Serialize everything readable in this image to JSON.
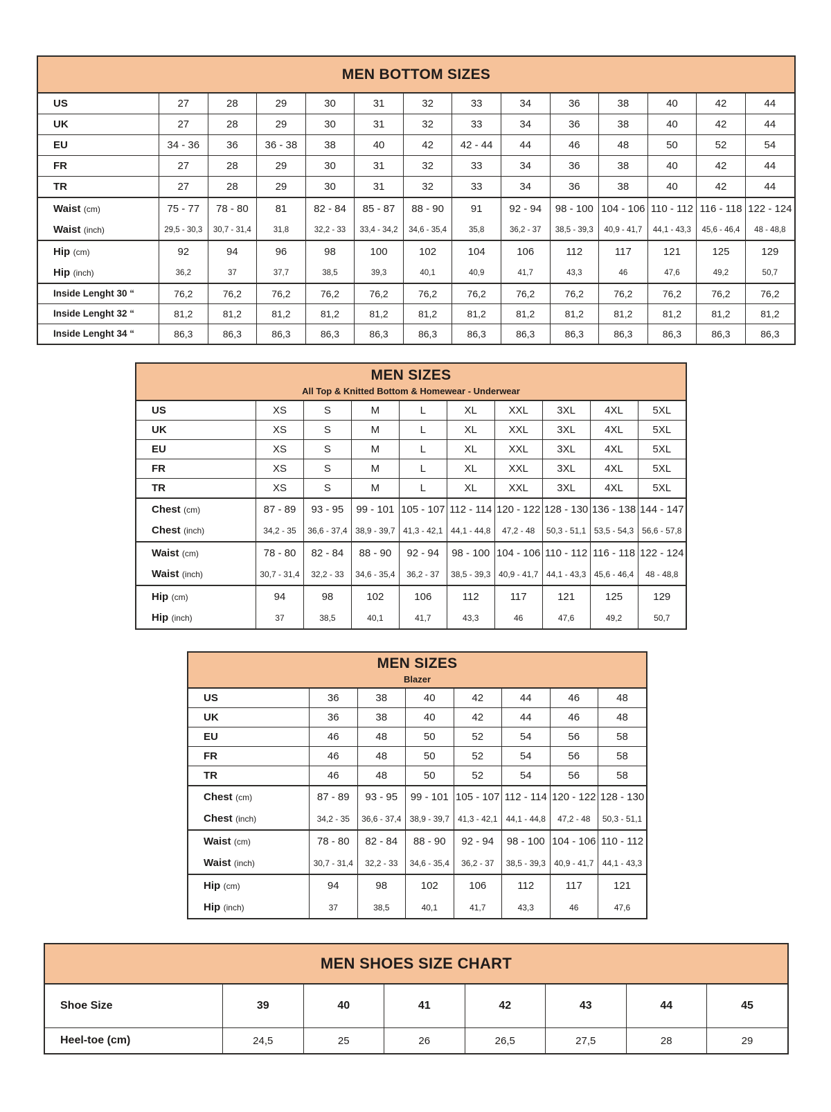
{
  "colors": {
    "band": "#F6C29A",
    "border": "#2e2c2a",
    "text": "#1d1b1a"
  },
  "tables": [
    {
      "title": "MEN BOTTOM SIZES",
      "subtitle": "",
      "rows": [
        {
          "kind": "size",
          "sep": "none",
          "label": "US",
          "paren": "",
          "values": [
            "27",
            "28",
            "29",
            "30",
            "31",
            "32",
            "33",
            "34",
            "36",
            "38",
            "40",
            "42",
            "44"
          ]
        },
        {
          "kind": "size",
          "sep": "thin",
          "label": "UK",
          "paren": "",
          "values": [
            "27",
            "28",
            "29",
            "30",
            "31",
            "32",
            "33",
            "34",
            "36",
            "38",
            "40",
            "42",
            "44"
          ]
        },
        {
          "kind": "size",
          "sep": "thin",
          "label": "EU",
          "paren": "",
          "values": [
            "34 - 36",
            "36",
            "36 - 38",
            "38",
            "40",
            "42",
            "42 - 44",
            "44",
            "46",
            "48",
            "50",
            "52",
            "54"
          ]
        },
        {
          "kind": "size",
          "sep": "thin",
          "label": "FR",
          "paren": "",
          "values": [
            "27",
            "28",
            "29",
            "30",
            "31",
            "32",
            "33",
            "34",
            "36",
            "38",
            "40",
            "42",
            "44"
          ]
        },
        {
          "kind": "size",
          "sep": "thin",
          "label": "TR",
          "paren": "",
          "values": [
            "27",
            "28",
            "29",
            "30",
            "31",
            "32",
            "33",
            "34",
            "36",
            "38",
            "40",
            "42",
            "44"
          ]
        },
        {
          "kind": "cm",
          "sep": "thick",
          "label": "Waist",
          "paren": "(cm)",
          "values": [
            "75 - 77",
            "78 - 80",
            "81",
            "82 - 84",
            "85 - 87",
            "88 - 90",
            "91",
            "92 - 94",
            "98 - 100",
            "104 - 106",
            "110 - 112",
            "116 - 118",
            "122 - 124"
          ]
        },
        {
          "kind": "inch",
          "sep": "none",
          "label": "Waist",
          "paren": "(inch)",
          "values": [
            "29,5 - 30,3",
            "30,7 - 31,4",
            "31,8",
            "32,2 - 33",
            "33,4 - 34,2",
            "34,6 - 35,4",
            "35,8",
            "36,2 - 37",
            "38,5 - 39,3",
            "40,9 - 41,7",
            "44,1 - 43,3",
            "45,6 - 46,4",
            "48 - 48,8"
          ]
        },
        {
          "kind": "cm",
          "sep": "thick",
          "label": "Hip",
          "paren": "(cm)",
          "values": [
            "92",
            "94",
            "96",
            "98",
            "100",
            "102",
            "104",
            "106",
            "112",
            "117",
            "121",
            "125",
            "129"
          ]
        },
        {
          "kind": "inch",
          "sep": "none",
          "label": "Hip",
          "paren": "(inch)",
          "values": [
            "36,2",
            "37",
            "37,7",
            "38,5",
            "39,3",
            "40,1",
            "40,9",
            "41,7",
            "43,3",
            "46",
            "47,6",
            "49,2",
            "50,7"
          ]
        },
        {
          "kind": "length",
          "sep": "thick",
          "label": "Inside Lenght 30 “",
          "paren": "",
          "values": [
            "76,2",
            "76,2",
            "76,2",
            "76,2",
            "76,2",
            "76,2",
            "76,2",
            "76,2",
            "76,2",
            "76,2",
            "76,2",
            "76,2",
            "76,2"
          ]
        },
        {
          "kind": "length",
          "sep": "thin",
          "label": "Inside Lenght 32 “",
          "paren": "",
          "values": [
            "81,2",
            "81,2",
            "81,2",
            "81,2",
            "81,2",
            "81,2",
            "81,2",
            "81,2",
            "81,2",
            "81,2",
            "81,2",
            "81,2",
            "81,2"
          ]
        },
        {
          "kind": "length",
          "sep": "thin",
          "label": "Inside Lenght 34 “",
          "paren": "",
          "values": [
            "86,3",
            "86,3",
            "86,3",
            "86,3",
            "86,3",
            "86,3",
            "86,3",
            "86,3",
            "86,3",
            "86,3",
            "86,3",
            "86,3",
            "86,3"
          ]
        }
      ]
    },
    {
      "title": "MEN SIZES",
      "subtitle": "All Top & Knitted Bottom & Homewear - Underwear",
      "rows": [
        {
          "kind": "size",
          "sep": "none",
          "label": "US",
          "paren": "",
          "values": [
            "XS",
            "S",
            "M",
            "L",
            "XL",
            "XXL",
            "3XL",
            "4XL",
            "5XL"
          ]
        },
        {
          "kind": "size",
          "sep": "thin",
          "label": "UK",
          "paren": "",
          "values": [
            "XS",
            "S",
            "M",
            "L",
            "XL",
            "XXL",
            "3XL",
            "4XL",
            "5XL"
          ]
        },
        {
          "kind": "size",
          "sep": "thin",
          "label": "EU",
          "paren": "",
          "values": [
            "XS",
            "S",
            "M",
            "L",
            "XL",
            "XXL",
            "3XL",
            "4XL",
            "5XL"
          ]
        },
        {
          "kind": "size",
          "sep": "thin",
          "label": "FR",
          "paren": "",
          "values": [
            "XS",
            "S",
            "M",
            "L",
            "XL",
            "XXL",
            "3XL",
            "4XL",
            "5XL"
          ]
        },
        {
          "kind": "size",
          "sep": "thin",
          "label": "TR",
          "paren": "",
          "values": [
            "XS",
            "S",
            "M",
            "L",
            "XL",
            "XXL",
            "3XL",
            "4XL",
            "5XL"
          ]
        },
        {
          "kind": "cm",
          "sep": "thick",
          "label": "Chest",
          "paren": "(cm)",
          "values": [
            "87 - 89",
            "93 - 95",
            "99 - 101",
            "105 - 107",
            "112 - 114",
            "120 - 122",
            "128 - 130",
            "136 - 138",
            "144 - 147"
          ]
        },
        {
          "kind": "inch",
          "sep": "none",
          "label": "Chest",
          "paren": "(inch)",
          "values": [
            "34,2 - 35",
            "36,6 - 37,4",
            "38,9 - 39,7",
            "41,3 - 42,1",
            "44,1 - 44,8",
            "47,2 - 48",
            "50,3 - 51,1",
            "53,5 - 54,3",
            "56,6 - 57,8"
          ]
        },
        {
          "kind": "cm",
          "sep": "thick",
          "label": "Waist",
          "paren": "(cm)",
          "values": [
            "78 - 80",
            "82 - 84",
            "88 - 90",
            "92 - 94",
            "98 - 100",
            "104 - 106",
            "110 - 112",
            "116 - 118",
            "122 - 124"
          ]
        },
        {
          "kind": "inch",
          "sep": "none",
          "label": "Waist",
          "paren": "(inch)",
          "values": [
            "30,7 - 31,4",
            "32,2 - 33",
            "34,6 - 35,4",
            "36,2 - 37",
            "38,5 - 39,3",
            "40,9 - 41,7",
            "44,1 - 43,3",
            "45,6 - 46,4",
            "48 - 48,8"
          ]
        },
        {
          "kind": "cm",
          "sep": "thick",
          "label": "Hip",
          "paren": "(cm)",
          "values": [
            "94",
            "98",
            "102",
            "106",
            "112",
            "117",
            "121",
            "125",
            "129"
          ]
        },
        {
          "kind": "inch",
          "sep": "none",
          "label": "Hip",
          "paren": "(inch)",
          "values": [
            "37",
            "38,5",
            "40,1",
            "41,7",
            "43,3",
            "46",
            "47,6",
            "49,2",
            "50,7"
          ]
        }
      ]
    },
    {
      "title": "MEN SIZES",
      "subtitle": "Blazer",
      "rows": [
        {
          "kind": "size",
          "sep": "none",
          "label": "US",
          "paren": "",
          "values": [
            "36",
            "38",
            "40",
            "42",
            "44",
            "46",
            "48"
          ]
        },
        {
          "kind": "size",
          "sep": "thin",
          "label": "UK",
          "paren": "",
          "values": [
            "36",
            "38",
            "40",
            "42",
            "44",
            "46",
            "48"
          ]
        },
        {
          "kind": "size",
          "sep": "thin",
          "label": "EU",
          "paren": "",
          "values": [
            "46",
            "48",
            "50",
            "52",
            "54",
            "56",
            "58"
          ]
        },
        {
          "kind": "size",
          "sep": "thin",
          "label": "FR",
          "paren": "",
          "values": [
            "46",
            "48",
            "50",
            "52",
            "54",
            "56",
            "58"
          ]
        },
        {
          "kind": "size",
          "sep": "thin",
          "label": "TR",
          "paren": "",
          "values": [
            "46",
            "48",
            "50",
            "52",
            "54",
            "56",
            "58"
          ]
        },
        {
          "kind": "cm",
          "sep": "thick",
          "label": "Chest",
          "paren": "(cm)",
          "values": [
            "87 - 89",
            "93 - 95",
            "99 - 101",
            "105 - 107",
            "112 - 114",
            "120 - 122",
            "128 - 130"
          ]
        },
        {
          "kind": "inch",
          "sep": "none",
          "label": "Chest",
          "paren": "(inch)",
          "values": [
            "34,2 - 35",
            "36,6 - 37,4",
            "38,9 - 39,7",
            "41,3 - 42,1",
            "44,1 - 44,8",
            "47,2 - 48",
            "50,3 - 51,1"
          ]
        },
        {
          "kind": "cm",
          "sep": "thick",
          "label": "Waist",
          "paren": "(cm)",
          "values": [
            "78 - 80",
            "82 - 84",
            "88 - 90",
            "92 - 94",
            "98 - 100",
            "104 - 106",
            "110 - 112"
          ]
        },
        {
          "kind": "inch",
          "sep": "none",
          "label": "Waist",
          "paren": "(inch)",
          "values": [
            "30,7 - 31,4",
            "32,2 - 33",
            "34,6 - 35,4",
            "36,2 - 37",
            "38,5 - 39,3",
            "40,9 - 41,7",
            "44,1 - 43,3"
          ]
        },
        {
          "kind": "cm",
          "sep": "thick",
          "label": "Hip",
          "paren": "(cm)",
          "values": [
            "94",
            "98",
            "102",
            "106",
            "112",
            "117",
            "121"
          ]
        },
        {
          "kind": "inch",
          "sep": "none",
          "label": "Hip",
          "paren": "(inch)",
          "values": [
            "37",
            "38,5",
            "40,1",
            "41,7",
            "43,3",
            "46",
            "47,6"
          ]
        }
      ]
    },
    {
      "title": "MEN SHOES SIZE CHART",
      "subtitle": "",
      "rows": [
        {
          "kind": "shoe",
          "sep": "none",
          "label": "Shoe Size",
          "paren": "",
          "values": [
            "39",
            "40",
            "41",
            "42",
            "43",
            "44",
            "45"
          ]
        },
        {
          "kind": "heel",
          "sep": "thin",
          "label": "Heel-toe (cm)",
          "paren": "",
          "values": [
            "24,5",
            "25",
            "26",
            "26,5",
            "27,5",
            "28",
            "29"
          ]
        }
      ]
    }
  ]
}
